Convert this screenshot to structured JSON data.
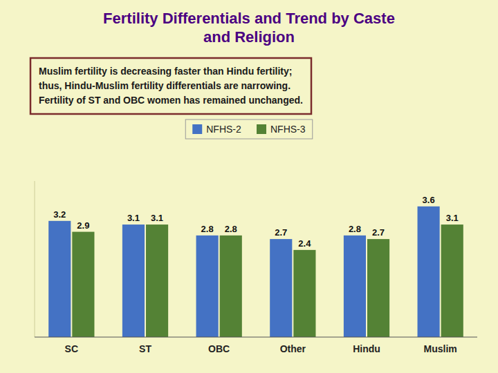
{
  "chart_data": {
    "type": "bar",
    "title": "Fertility Differentials and Trend by Caste\nand Religion",
    "subtitle": "Muslim fertility is decreasing faster than Hindu fertility;\nthus, Hindu-Muslim fertility differentials are narrowing.\nFertility of ST and OBC women has remained unchanged.",
    "categories": [
      "SC",
      "ST",
      "OBC",
      "Other",
      "Hindu",
      "Muslim"
    ],
    "series": [
      {
        "name": "NFHS-2",
        "color": "#4472C4",
        "values": [
          3.2,
          3.1,
          2.8,
          2.7,
          2.8,
          3.6
        ]
      },
      {
        "name": "NFHS-3",
        "color": "#548235",
        "values": [
          2.9,
          3.1,
          2.8,
          2.4,
          2.7,
          3.1
        ]
      }
    ],
    "ylim": [
      0,
      4.3
    ],
    "grid": false,
    "legend": "top",
    "data_labels": true,
    "tick_labels": "x"
  }
}
